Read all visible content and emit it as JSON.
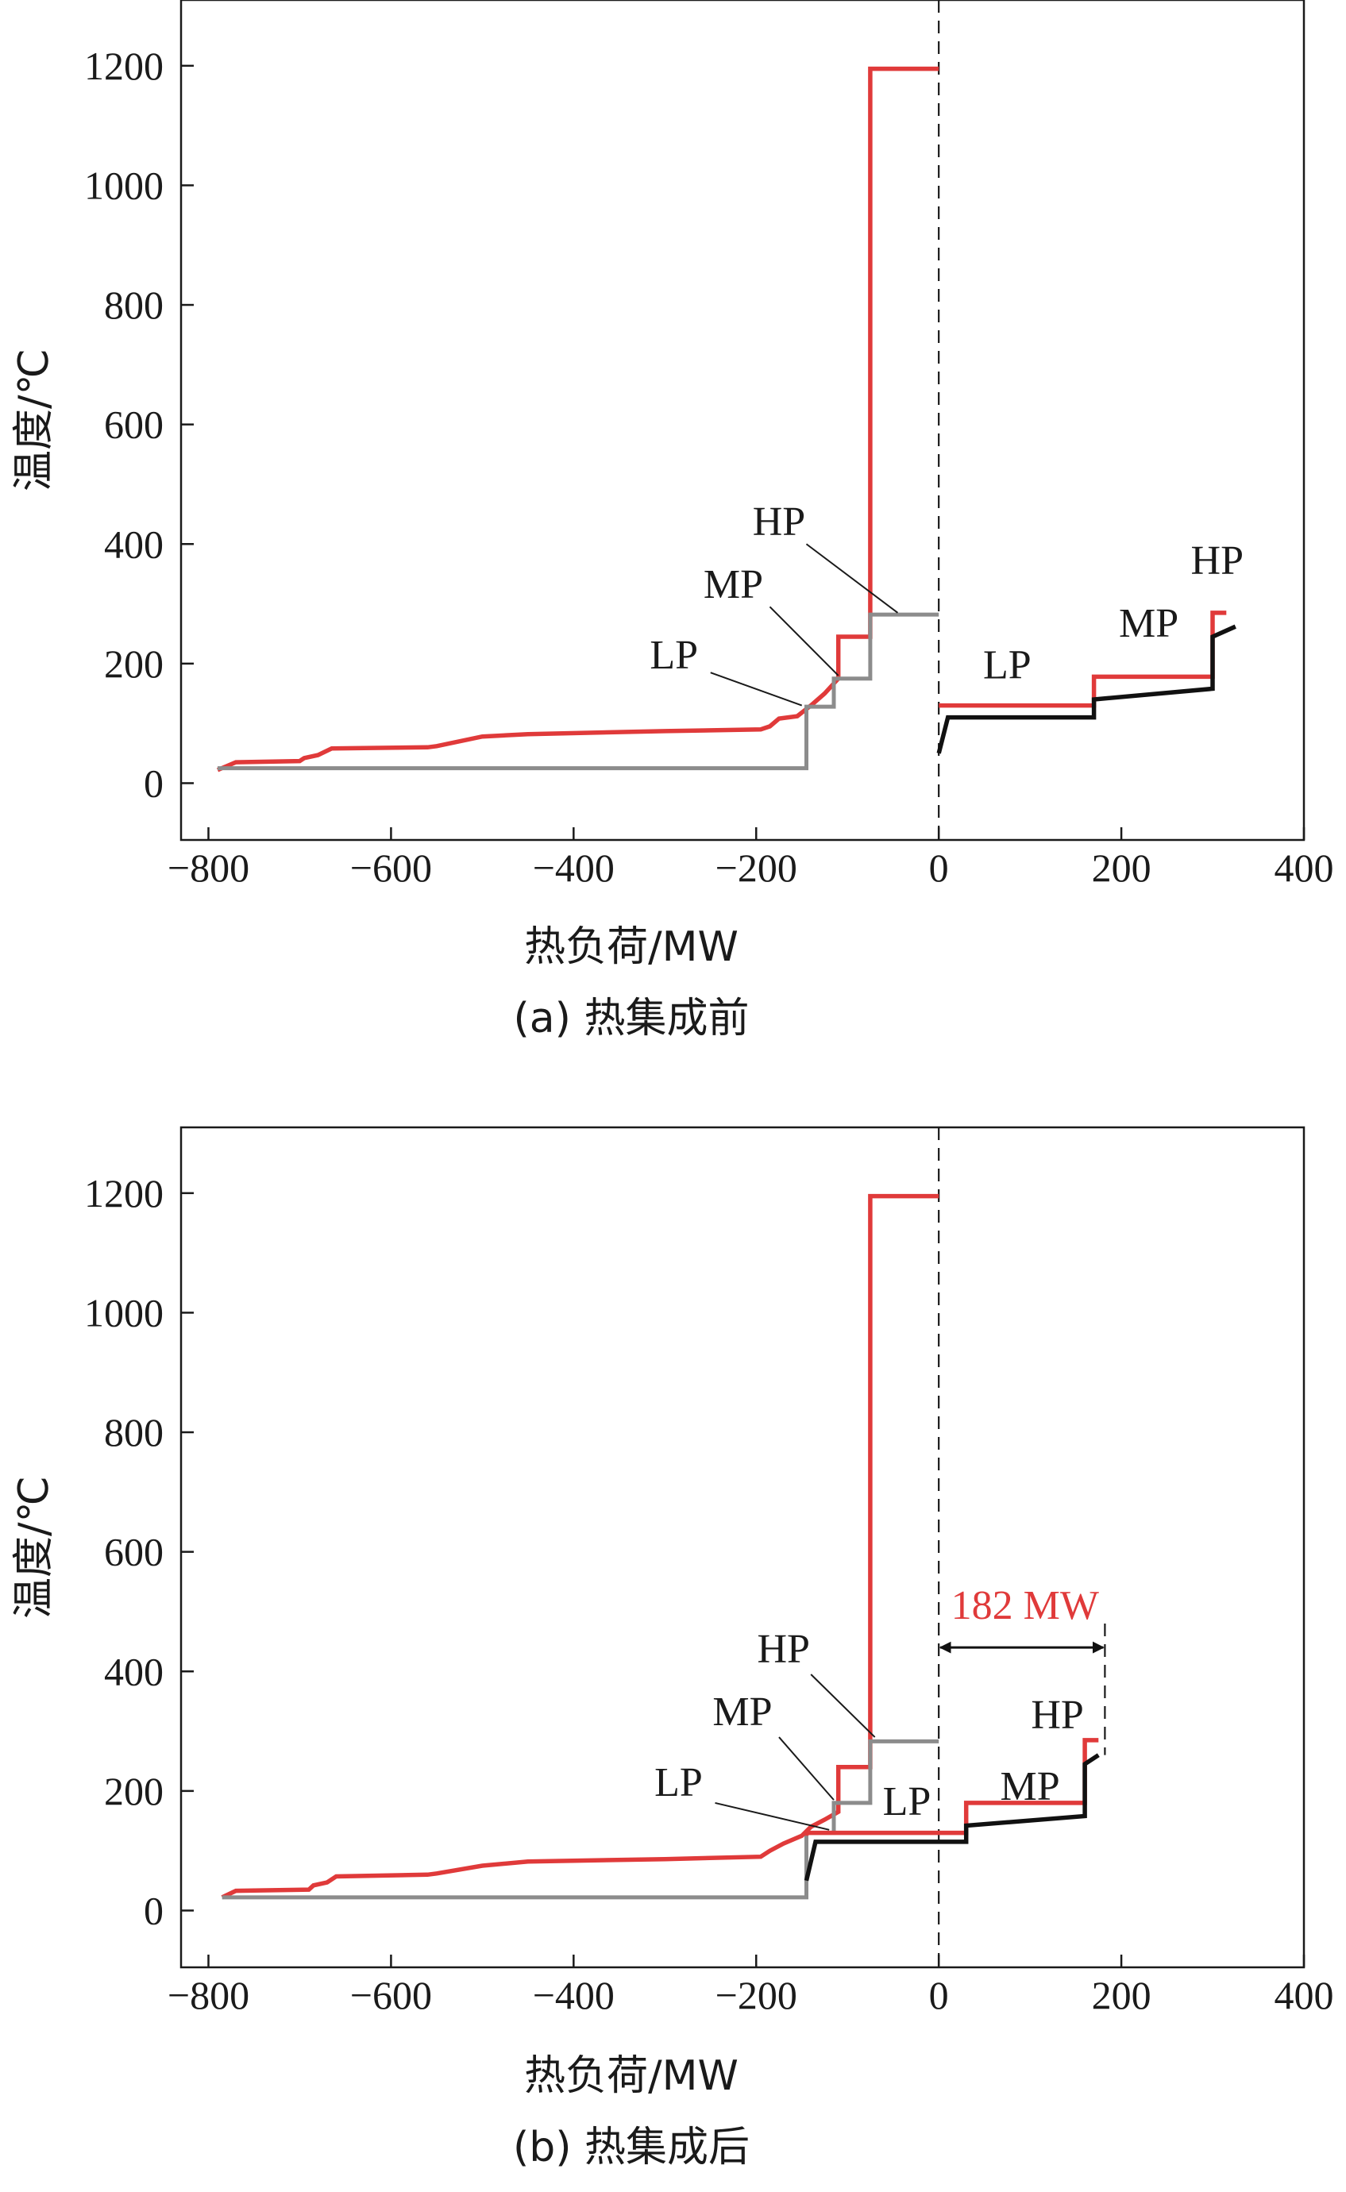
{
  "colors": {
    "hot": "#e03a3a",
    "cold": "#111111",
    "gray": "#8c8c8c",
    "axis": "#1a1a1a"
  },
  "chart_data": [
    {
      "type": "line",
      "caption": "(a) 热集成前",
      "xlabel": "热负荷/MW",
      "ylabel": "温度/℃",
      "xlim": [
        -830,
        400
      ],
      "ylim": [
        -95,
        1310
      ],
      "xticks": [
        -800,
        -600,
        -400,
        -200,
        0,
        200,
        400
      ],
      "yticks": [
        0,
        200,
        400,
        600,
        800,
        1000,
        1200
      ],
      "xtick_labels": [
        "−800",
        "−600",
        "−400",
        "−200",
        "0",
        "200",
        "400"
      ],
      "ytick_labels": [
        "0",
        "200",
        "400",
        "600",
        "800",
        "1000",
        "1200"
      ],
      "vline_x": 0,
      "series": [
        {
          "color": "hot",
          "points": [
            [
              -790,
              22
            ],
            [
              -770,
              35
            ],
            [
              -700,
              37
            ],
            [
              -695,
              42
            ],
            [
              -680,
              47
            ],
            [
              -665,
              58
            ],
            [
              -560,
              60
            ],
            [
              -550,
              62
            ],
            [
              -500,
              78
            ],
            [
              -450,
              82
            ],
            [
              -300,
              87
            ],
            [
              -195,
              90
            ],
            [
              -185,
              95
            ],
            [
              -175,
              108
            ],
            [
              -155,
              112
            ],
            [
              -140,
              130
            ],
            [
              -125,
              150
            ],
            [
              -110,
              175
            ],
            [
              -110,
              245
            ],
            [
              -75,
              245
            ],
            [
              -75,
              1195
            ],
            [
              0,
              1195
            ]
          ]
        },
        {
          "color": "gray",
          "points": [
            [
              -790,
              25
            ],
            [
              -145,
              25
            ],
            [
              -145,
              128
            ],
            [
              -115,
              128
            ],
            [
              -115,
              175
            ],
            [
              -75,
              175
            ],
            [
              -75,
              282
            ],
            [
              0,
              282
            ]
          ]
        },
        {
          "color": "hot",
          "points": [
            [
              0,
              130
            ],
            [
              170,
              130
            ],
            [
              170,
              178
            ],
            [
              300,
              178
            ],
            [
              300,
              285
            ],
            [
              315,
              285
            ]
          ]
        },
        {
          "color": "cold",
          "points": [
            [
              0,
              50
            ],
            [
              10,
              110
            ],
            [
              170,
              110
            ],
            [
              170,
              140
            ],
            [
              300,
              158
            ],
            [
              300,
              245
            ],
            [
              325,
              262
            ]
          ]
        }
      ],
      "annotations": [
        {
          "text": "HP",
          "x": -175,
          "y": 415,
          "color": "axis",
          "leader": [
            [
              -145,
              400
            ],
            [
              -45,
              285
            ]
          ]
        },
        {
          "text": "MP",
          "x": -225,
          "y": 310,
          "color": "axis",
          "leader": [
            [
              -185,
              295
            ],
            [
              -110,
              180
            ]
          ]
        },
        {
          "text": "LP",
          "x": -290,
          "y": 192,
          "color": "axis",
          "leader": [
            [
              -250,
              185
            ],
            [
              -150,
              130
            ]
          ]
        },
        {
          "text": "LP",
          "x": 75,
          "y": 175,
          "color": "axis"
        },
        {
          "text": "MP",
          "x": 230,
          "y": 245,
          "color": "axis"
        },
        {
          "text": "HP",
          "x": 305,
          "y": 350,
          "color": "axis"
        }
      ]
    },
    {
      "type": "line",
      "caption": "(b) 热集成后",
      "xlabel": "热负荷/MW",
      "ylabel": "温度/℃",
      "xlim": [
        -830,
        400
      ],
      "ylim": [
        -95,
        1310
      ],
      "xticks": [
        -800,
        -600,
        -400,
        -200,
        0,
        200,
        400
      ],
      "yticks": [
        0,
        200,
        400,
        600,
        800,
        1000,
        1200
      ],
      "xtick_labels": [
        "−800",
        "−600",
        "−400",
        "−200",
        "0",
        "200",
        "400"
      ],
      "ytick_labels": [
        "0",
        "200",
        "400",
        "600",
        "800",
        "1000",
        "1200"
      ],
      "vline_x": 0,
      "series": [
        {
          "color": "hot",
          "points": [
            [
              -785,
              22
            ],
            [
              -770,
              33
            ],
            [
              -690,
              35
            ],
            [
              -685,
              42
            ],
            [
              -670,
              47
            ],
            [
              -660,
              57
            ],
            [
              -560,
              60
            ],
            [
              -550,
              62
            ],
            [
              -500,
              75
            ],
            [
              -450,
              82
            ],
            [
              -300,
              86
            ],
            [
              -195,
              90
            ],
            [
              -185,
              100
            ],
            [
              -170,
              112
            ],
            [
              -150,
              125
            ],
            [
              -140,
              140
            ],
            [
              -125,
              152
            ],
            [
              -110,
              165
            ],
            [
              -110,
              240
            ],
            [
              -75,
              240
            ],
            [
              -75,
              1195
            ],
            [
              0,
              1195
            ]
          ]
        },
        {
          "color": "gray",
          "points": [
            [
              -785,
              22
            ],
            [
              -145,
              22
            ],
            [
              -145,
              130
            ],
            [
              -115,
              130
            ],
            [
              -115,
              180
            ],
            [
              -75,
              180
            ],
            [
              -75,
              283
            ],
            [
              0,
              283
            ]
          ]
        },
        {
          "color": "hot",
          "points": [
            [
              -145,
              125
            ],
            [
              -145,
              130
            ],
            [
              30,
              130
            ],
            [
              30,
              180
            ],
            [
              160,
              180
            ],
            [
              160,
              285
            ],
            [
              175,
              285
            ]
          ]
        },
        {
          "color": "cold",
          "points": [
            [
              -145,
              50
            ],
            [
              -135,
              115
            ],
            [
              30,
              115
            ],
            [
              30,
              142
            ],
            [
              160,
              158
            ],
            [
              160,
              245
            ],
            [
              175,
              260
            ]
          ]
        }
      ],
      "dimension": {
        "text": "182 MW",
        "from_x": 0,
        "to_x": 182,
        "y": 440,
        "guide_top": 480,
        "guide_bottom": 260
      },
      "annotations": [
        {
          "text": "HP",
          "x": -170,
          "y": 415,
          "color": "axis",
          "leader": [
            [
              -140,
              395
            ],
            [
              -70,
              290
            ]
          ]
        },
        {
          "text": "MP",
          "x": -215,
          "y": 310,
          "color": "axis",
          "leader": [
            [
              -175,
              290
            ],
            [
              -115,
              185
            ]
          ]
        },
        {
          "text": "LP",
          "x": -285,
          "y": 192,
          "color": "axis",
          "leader": [
            [
              -245,
              180
            ],
            [
              -120,
              135
            ]
          ]
        },
        {
          "text": "LP",
          "x": -35,
          "y": 160,
          "color": "axis"
        },
        {
          "text": "MP",
          "x": 100,
          "y": 185,
          "color": "axis"
        },
        {
          "text": "HP",
          "x": 130,
          "y": 305,
          "color": "axis"
        }
      ]
    }
  ]
}
